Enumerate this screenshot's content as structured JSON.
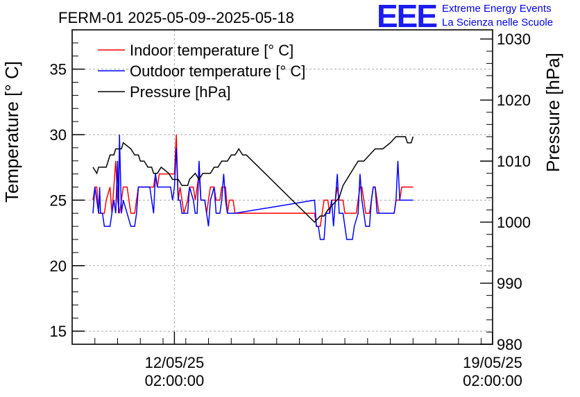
{
  "title": "FERM-01 2025-05-09--2025-05-18",
  "logo": {
    "text": "EEE",
    "line1": "Extreme Energy Events",
    "line2": "La Scienza nelle Scuole"
  },
  "colors": {
    "indoor": "#ff0000",
    "outdoor": "#0000ff",
    "pressure": "#000000",
    "grid": "#aaaaaa",
    "logo": "#1c1cf0"
  },
  "chart_data": {
    "type": "line",
    "title": "FERM-01 2025-05-09--2025-05-18",
    "ylabel": "Temperature [° C]",
    "y2label": "Pressure [hPa]",
    "ylim": [
      14,
      38
    ],
    "y2lim": [
      980,
      1031.5
    ],
    "yticks": [
      15,
      20,
      25,
      30,
      35
    ],
    "y2ticks": [
      980,
      990,
      1000,
      1010,
      1020,
      1030
    ],
    "xlim": [
      "2025-05-09 20:00",
      "2025-05-19 02:00"
    ],
    "xticks": [
      {
        "x": "2025-05-12 02:00",
        "date": "12/05/25",
        "time": "02:00:00"
      },
      {
        "x": "2025-05-19 02:00",
        "date": "19/05/25",
        "time": "02:00:00"
      }
    ],
    "grid": true,
    "legend_position": "top-left",
    "series": [
      {
        "name": "Indoor temperature [° C]",
        "axis": "left",
        "color": "#ff0000",
        "points": [
          [
            "2025-05-10 07:00",
            25
          ],
          [
            "2025-05-10 08:00",
            26
          ],
          [
            "2025-05-10 09:00",
            26
          ],
          [
            "2025-05-10 09:30",
            25
          ],
          [
            "2025-05-10 10:00",
            24
          ],
          [
            "2025-05-10 13:00",
            24
          ],
          [
            "2025-05-10 14:00",
            25
          ],
          [
            "2025-05-10 16:00",
            26
          ],
          [
            "2025-05-10 17:00",
            24
          ],
          [
            "2025-05-10 18:00",
            26
          ],
          [
            "2025-05-10 19:00",
            28
          ],
          [
            "2025-05-10 20:00",
            25
          ],
          [
            "2025-05-10 21:00",
            24
          ],
          [
            "2025-05-10 22:00",
            25
          ],
          [
            "2025-05-10 23:00",
            26
          ],
          [
            "2025-05-11 01:00",
            26
          ],
          [
            "2025-05-11 02:00",
            25
          ],
          [
            "2025-05-11 03:00",
            24
          ],
          [
            "2025-05-11 05:00",
            24
          ],
          [
            "2025-05-11 06:00",
            25
          ],
          [
            "2025-05-11 07:00",
            26
          ],
          [
            "2025-05-11 15:00",
            26
          ],
          [
            "2025-05-11 16:00",
            27
          ],
          [
            "2025-05-11 17:00",
            26
          ],
          [
            "2025-05-11 18:00",
            27
          ],
          [
            "2025-05-12 02:00",
            27
          ],
          [
            "2025-05-12 03:00",
            30
          ],
          [
            "2025-05-12 04:00",
            25
          ],
          [
            "2025-05-12 05:00",
            26
          ],
          [
            "2025-05-12 06:00",
            25
          ],
          [
            "2025-05-12 07:00",
            24
          ],
          [
            "2025-05-12 09:00",
            25
          ],
          [
            "2025-05-12 10:00",
            26
          ],
          [
            "2025-05-12 12:00",
            26
          ],
          [
            "2025-05-12 13:00",
            25
          ],
          [
            "2025-05-12 15:00",
            27
          ],
          [
            "2025-05-12 16:00",
            25
          ],
          [
            "2025-05-12 18:00",
            25
          ],
          [
            "2025-05-12 19:00",
            24
          ],
          [
            "2025-05-12 20:00",
            25
          ],
          [
            "2025-05-12 21:00",
            26
          ],
          [
            "2025-05-12 23:00",
            26
          ],
          [
            "2025-05-13 00:00",
            25
          ],
          [
            "2025-05-13 02:00",
            25
          ],
          [
            "2025-05-13 03:00",
            26
          ],
          [
            "2025-05-13 05:00",
            26
          ],
          [
            "2025-05-13 06:00",
            24
          ],
          [
            "2025-05-13 07:00",
            25
          ],
          [
            "2025-05-13 09:00",
            25
          ],
          [
            "2025-05-13 10:00",
            24
          ],
          [
            "2025-05-15 04:00",
            24
          ],
          [
            "2025-05-15 05:00",
            23
          ],
          [
            "2025-05-15 07:00",
            23
          ],
          [
            "2025-05-15 08:00",
            24
          ],
          [
            "2025-05-15 09:00",
            25
          ],
          [
            "2025-05-15 11:00",
            25
          ],
          [
            "2025-05-15 12:00",
            24
          ],
          [
            "2025-05-15 13:00",
            25
          ],
          [
            "2025-05-15 15:00",
            25
          ],
          [
            "2025-05-15 16:00",
            26
          ],
          [
            "2025-05-15 17:00",
            25
          ],
          [
            "2025-05-15 19:00",
            25
          ],
          [
            "2025-05-15 20:00",
            24
          ],
          [
            "2025-05-16 02:00",
            24
          ],
          [
            "2025-05-16 03:00",
            25
          ],
          [
            "2025-05-16 04:00",
            26
          ],
          [
            "2025-05-16 05:00",
            26
          ],
          [
            "2025-05-16 06:00",
            25
          ],
          [
            "2025-05-16 07:00",
            24
          ],
          [
            "2025-05-16 09:00",
            24
          ],
          [
            "2025-05-16 10:00",
            25
          ],
          [
            "2025-05-16 11:00",
            26
          ],
          [
            "2025-05-16 12:00",
            26
          ],
          [
            "2025-05-16 14:00",
            24
          ],
          [
            "2025-05-16 22:00",
            24
          ],
          [
            "2025-05-16 23:00",
            25
          ],
          [
            "2025-05-17 01:00",
            25
          ],
          [
            "2025-05-17 02:00",
            26
          ],
          [
            "2025-05-17 08:00",
            26
          ]
        ]
      },
      {
        "name": "Outdoor temperature [° C]",
        "axis": "left",
        "color": "#0000ff",
        "points": [
          [
            "2025-05-10 07:00",
            24
          ],
          [
            "2025-05-10 07:30",
            25
          ],
          [
            "2025-05-10 08:00",
            26
          ],
          [
            "2025-05-10 09:00",
            25
          ],
          [
            "2025-05-10 10:00",
            24
          ],
          [
            "2025-05-10 10:30",
            26
          ],
          [
            "2025-05-10 11:00",
            24
          ],
          [
            "2025-05-10 12:00",
            24
          ],
          [
            "2025-05-10 13:00",
            23
          ],
          [
            "2025-05-10 16:00",
            23
          ],
          [
            "2025-05-10 17:00",
            24
          ],
          [
            "2025-05-10 18:00",
            25
          ],
          [
            "2025-05-10 19:00",
            24
          ],
          [
            "2025-05-10 20:00",
            28
          ],
          [
            "2025-05-10 20:30",
            24
          ],
          [
            "2025-05-10 21:00",
            30
          ],
          [
            "2025-05-10 22:00",
            24
          ],
          [
            "2025-05-10 23:00",
            25
          ],
          [
            "2025-05-11 01:00",
            24
          ],
          [
            "2025-05-11 03:00",
            23
          ],
          [
            "2025-05-11 05:00",
            23
          ],
          [
            "2025-05-11 06:00",
            24
          ],
          [
            "2025-05-11 07:00",
            26
          ],
          [
            "2025-05-11 13:00",
            26
          ],
          [
            "2025-05-11 14:00",
            25
          ],
          [
            "2025-05-11 15:00",
            24
          ],
          [
            "2025-05-11 16:00",
            27
          ],
          [
            "2025-05-11 17:00",
            26
          ],
          [
            "2025-05-12 00:00",
            26
          ],
          [
            "2025-05-12 01:00",
            25
          ],
          [
            "2025-05-12 02:00",
            26
          ],
          [
            "2025-05-12 03:00",
            29
          ],
          [
            "2025-05-12 04:00",
            25
          ],
          [
            "2025-05-12 05:00",
            25
          ],
          [
            "2025-05-12 06:00",
            24
          ],
          [
            "2025-05-12 09:00",
            24
          ],
          [
            "2025-05-12 10:00",
            26
          ],
          [
            "2025-05-12 12:00",
            25
          ],
          [
            "2025-05-12 13:00",
            24
          ],
          [
            "2025-05-12 14:00",
            24
          ],
          [
            "2025-05-12 15:00",
            28
          ],
          [
            "2025-05-12 16:00",
            25
          ],
          [
            "2025-05-12 18:00",
            25
          ],
          [
            "2025-05-12 19:00",
            24
          ],
          [
            "2025-05-12 20:00",
            23
          ],
          [
            "2025-05-12 21:00",
            25
          ],
          [
            "2025-05-12 23:00",
            26
          ],
          [
            "2025-05-13 00:00",
            24
          ],
          [
            "2025-05-13 02:00",
            24
          ],
          [
            "2025-05-13 03:00",
            25
          ],
          [
            "2025-05-13 04:00",
            27
          ],
          [
            "2025-05-13 05:00",
            25
          ],
          [
            "2025-05-13 06:00",
            24
          ],
          [
            "2025-05-13 10:00",
            24
          ],
          [
            "2025-05-15 04:00",
            25
          ],
          [
            "2025-05-15 05:00",
            23
          ],
          [
            "2025-05-15 06:00",
            23
          ],
          [
            "2025-05-15 07:00",
            22
          ],
          [
            "2025-05-15 09:00",
            22
          ],
          [
            "2025-05-15 10:00",
            24
          ],
          [
            "2025-05-15 12:00",
            24
          ],
          [
            "2025-05-15 13:00",
            25
          ],
          [
            "2025-05-15 14:00",
            23
          ],
          [
            "2025-05-15 15:00",
            25
          ],
          [
            "2025-05-15 16:00",
            27
          ],
          [
            "2025-05-15 17:00",
            24
          ],
          [
            "2025-05-15 19:00",
            24
          ],
          [
            "2025-05-15 20:00",
            23
          ],
          [
            "2025-05-15 21:00",
            22
          ],
          [
            "2025-05-16 00:00",
            22
          ],
          [
            "2025-05-16 01:00",
            23
          ],
          [
            "2025-05-16 03:00",
            24
          ],
          [
            "2025-05-16 04:00",
            27
          ],
          [
            "2025-05-16 05:00",
            25
          ],
          [
            "2025-05-16 06:00",
            24
          ],
          [
            "2025-05-16 07:00",
            23
          ],
          [
            "2025-05-16 09:00",
            23
          ],
          [
            "2025-05-16 10:00",
            25
          ],
          [
            "2025-05-16 11:00",
            26
          ],
          [
            "2025-05-16 12:00",
            26
          ],
          [
            "2025-05-16 13:00",
            24
          ],
          [
            "2025-05-16 22:00",
            24
          ],
          [
            "2025-05-16 23:00",
            25
          ],
          [
            "2025-05-17 00:00",
            28
          ],
          [
            "2025-05-17 01:00",
            25
          ],
          [
            "2025-05-17 02:00",
            25
          ],
          [
            "2025-05-17 08:00",
            25
          ]
        ]
      },
      {
        "name": "Pressure [hPa]",
        "axis": "right",
        "color": "#000000",
        "points": [
          [
            "2025-05-10 07:00",
            1009
          ],
          [
            "2025-05-10 09:00",
            1008
          ],
          [
            "2025-05-10 10:00",
            1009
          ],
          [
            "2025-05-10 14:00",
            1009
          ],
          [
            "2025-05-10 15:00",
            1010
          ],
          [
            "2025-05-10 16:00",
            1011
          ],
          [
            "2025-05-10 18:00",
            1011
          ],
          [
            "2025-05-10 19:00",
            1012
          ],
          [
            "2025-05-10 22:00",
            1012
          ],
          [
            "2025-05-10 23:00",
            1013
          ],
          [
            "2025-05-11 03:00",
            1012
          ],
          [
            "2025-05-11 05:00",
            1011
          ],
          [
            "2025-05-11 07:00",
            1011
          ],
          [
            "2025-05-11 08:00",
            1010
          ],
          [
            "2025-05-11 10:00",
            1010
          ],
          [
            "2025-05-11 12:00",
            1009
          ],
          [
            "2025-05-11 14:00",
            1009
          ],
          [
            "2025-05-11 15:00",
            1008
          ],
          [
            "2025-05-11 17:00",
            1008
          ],
          [
            "2025-05-11 19:00",
            1009
          ],
          [
            "2025-05-11 23:00",
            1008
          ],
          [
            "2025-05-12 01:00",
            1007
          ],
          [
            "2025-05-12 04:00",
            1007
          ],
          [
            "2025-05-12 06:00",
            1006
          ],
          [
            "2025-05-12 09:00",
            1006
          ],
          [
            "2025-05-12 10:00",
            1007
          ],
          [
            "2025-05-12 13:00",
            1008
          ],
          [
            "2025-05-12 15:00",
            1007
          ],
          [
            "2025-05-12 17:00",
            1008
          ],
          [
            "2025-05-12 21:00",
            1008
          ],
          [
            "2025-05-12 23:00",
            1009
          ],
          [
            "2025-05-13 01:00",
            1009
          ],
          [
            "2025-05-13 03:00",
            1010
          ],
          [
            "2025-05-13 06:00",
            1010
          ],
          [
            "2025-05-13 08:00",
            1011
          ],
          [
            "2025-05-13 10:00",
            1011
          ],
          [
            "2025-05-13 12:00",
            1012
          ],
          [
            "2025-05-13 14:00",
            1011
          ],
          [
            "2025-05-13 16:00",
            1011
          ],
          [
            "2025-05-15 04:00",
            1000
          ],
          [
            "2025-05-15 07:00",
            1001
          ],
          [
            "2025-05-15 09:00",
            1001
          ],
          [
            "2025-05-15 11:00",
            1002
          ],
          [
            "2025-05-15 14:00",
            1003
          ],
          [
            "2025-05-15 17:00",
            1004
          ],
          [
            "2025-05-15 19:00",
            1006
          ],
          [
            "2025-05-15 21:00",
            1007
          ],
          [
            "2025-05-16 01:00",
            1009
          ],
          [
            "2025-05-16 03:00",
            1010
          ],
          [
            "2025-05-16 06:00",
            1010
          ],
          [
            "2025-05-16 09:00",
            1011
          ],
          [
            "2025-05-16 12:00",
            1012
          ],
          [
            "2025-05-16 16:00",
            1012
          ],
          [
            "2025-05-16 20:00",
            1013
          ],
          [
            "2025-05-16 23:00",
            1014
          ],
          [
            "2025-05-17 04:00",
            1014
          ],
          [
            "2025-05-17 05:00",
            1013
          ],
          [
            "2025-05-17 07:00",
            1013
          ],
          [
            "2025-05-17 08:00",
            1014
          ]
        ]
      }
    ]
  }
}
